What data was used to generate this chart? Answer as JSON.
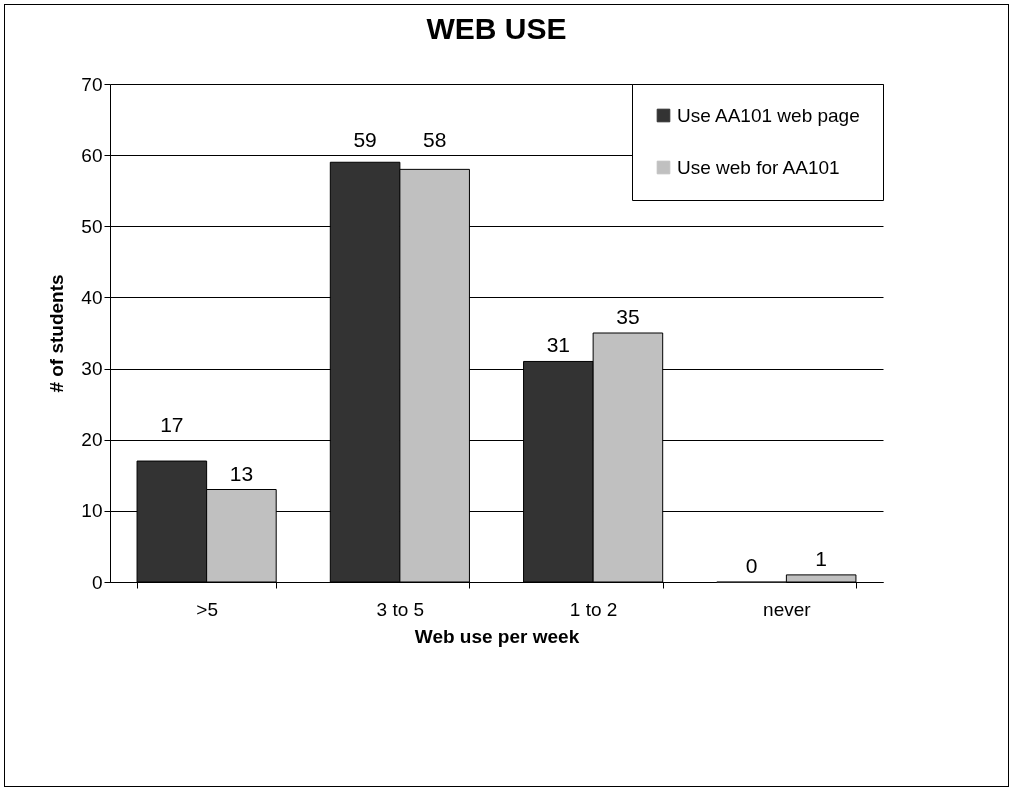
{
  "chart_data": {
    "type": "bar",
    "title": "WEB USE",
    "xlabel": "Web use per week",
    "ylabel": "# of students",
    "categories": [
      ">5",
      "3 to 5",
      "1 to 2",
      "never"
    ],
    "series": [
      {
        "name": "Use AA101 web page",
        "color": "#333333",
        "values": [
          17,
          59,
          31,
          0
        ]
      },
      {
        "name": "Use web for AA101",
        "color": "#c0c0c0",
        "values": [
          13,
          58,
          35,
          1
        ]
      }
    ],
    "ylim": [
      0,
      70
    ],
    "yticks": [
      0,
      10,
      20,
      30,
      40,
      50,
      60,
      70
    ],
    "grid": "y",
    "legend": "top right",
    "data_labels": true
  }
}
